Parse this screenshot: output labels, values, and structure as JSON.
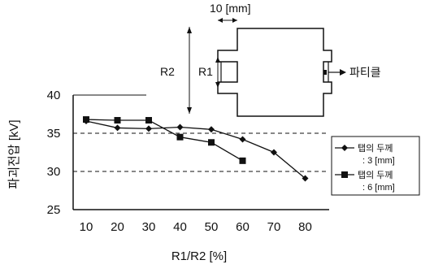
{
  "chart_data": {
    "type": "line",
    "title": "",
    "xlabel": "R1/R2 [%]",
    "ylabel": "파괴전압 [kV]",
    "categories": [
      "10",
      "20",
      "30",
      "40",
      "50",
      "60",
      "70",
      "80"
    ],
    "ylim": [
      25,
      40
    ],
    "yticks": [
      "25",
      "30",
      "35",
      "40"
    ],
    "reference_lines": [
      30,
      35
    ],
    "grid": false,
    "legend_position": "right",
    "series": [
      {
        "name_line1": "탭의 두께",
        "name_line2": ": 3 [mm]",
        "marker": "diamond",
        "x": [
          10,
          20,
          30,
          40,
          50,
          60,
          70,
          80
        ],
        "values": [
          36.6,
          35.7,
          35.6,
          35.8,
          35.5,
          34.2,
          32.5,
          29.1
        ]
      },
      {
        "name_line1": "탭의 두께",
        "name_line2": ": 6 [mm]",
        "marker": "square",
        "x": [
          10,
          20,
          30,
          40,
          50,
          60
        ],
        "values": [
          36.8,
          36.7,
          36.7,
          34.5,
          33.8,
          31.4
        ]
      }
    ]
  },
  "diagram": {
    "width_label": "10 [mm]",
    "r2_label": "R2",
    "r1_label": "R1",
    "tip_label": "파티클"
  }
}
